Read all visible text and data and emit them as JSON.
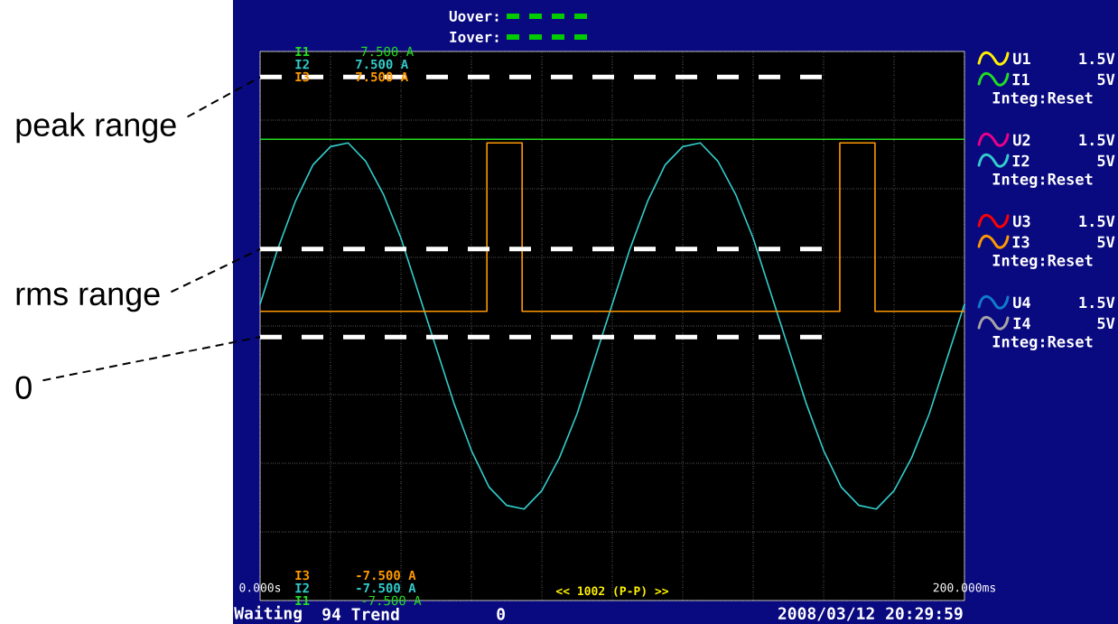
{
  "chart_data": {
    "type": "line",
    "x": [
      0,
      5,
      10,
      15,
      20,
      25,
      30,
      35,
      40,
      45,
      50,
      55,
      60,
      65,
      70,
      75,
      80,
      85,
      90,
      95,
      100,
      105,
      110,
      115,
      120,
      125,
      130,
      135,
      140,
      145,
      150,
      155,
      160,
      165,
      170,
      175,
      180,
      185,
      190,
      195,
      200
    ],
    "series": [
      {
        "name": "I1",
        "color": "#22dd22",
        "x": [
          0,
          200
        ],
        "values": [
          5.1,
          5.1
        ]
      },
      {
        "name": "I2",
        "color": "#33cccc",
        "values": [
          0.6,
          2.1,
          3.4,
          4.4,
          4.9,
          5.0,
          4.5,
          3.6,
          2.4,
          0.9,
          -0.6,
          -2.1,
          -3.4,
          -4.4,
          -4.9,
          -5.0,
          -4.5,
          -3.6,
          -2.4,
          -0.9,
          0.6,
          2.1,
          3.4,
          4.4,
          4.9,
          5.0,
          4.5,
          3.6,
          2.4,
          0.9,
          -0.6,
          -2.1,
          -3.4,
          -4.4,
          -4.9,
          -5.0,
          -4.5,
          -3.6,
          -2.4,
          -0.9,
          0.6
        ]
      },
      {
        "name": "I3",
        "color": "#ff9900",
        "x": [
          0,
          64.4,
          64.4,
          74.4,
          74.4,
          164.6,
          164.6,
          174.6,
          174.6,
          200
        ],
        "values": [
          0.4,
          0.4,
          5.0,
          5.0,
          0.4,
          0.4,
          5.0,
          5.0,
          0.4,
          0.4
        ]
      }
    ],
    "xlim": [
      0,
      200
    ],
    "xticks": [
      {
        "value": 0,
        "label": "0.000s"
      },
      {
        "value": 20,
        "label": null
      },
      {
        "value": 40,
        "label": null
      },
      {
        "value": 60,
        "label": null
      },
      {
        "value": 80,
        "label": null
      },
      {
        "value": 100,
        "label": null
      },
      {
        "value": 120,
        "label": null
      },
      {
        "value": 140,
        "label": null
      },
      {
        "value": 160,
        "label": null
      },
      {
        "value": 180,
        "label": null
      },
      {
        "value": 200,
        "label": "200.000ms"
      }
    ],
    "ylim": [
      -7.5,
      7.5
    ],
    "yticks": [
      {
        "value": -7.5,
        "label": "-7.500 A"
      },
      {
        "value": -5.625,
        "label": null
      },
      {
        "value": -3.75,
        "label": null
      },
      {
        "value": -1.875,
        "label": null
      },
      {
        "value": 0,
        "label": null
      },
      {
        "value": 1.875,
        "label": null
      },
      {
        "value": 3.75,
        "label": null
      },
      {
        "value": 5.625,
        "label": null
      },
      {
        "value": 7.5,
        "label": "7.500 A"
      }
    ],
    "grid": true,
    "legend": "right",
    "ref_lines": [
      {
        "axis": "y",
        "value": 6.8,
        "label": "peak range",
        "color": "#ffffff",
        "line_style": "dashed"
      },
      {
        "axis": "y",
        "value": 2.1,
        "label": "rms range",
        "color": "#ffffff",
        "line_style": "dashed"
      },
      {
        "axis": "y",
        "value": -0.3,
        "label": "0",
        "color": "#ffffff",
        "line_style": "dashed"
      }
    ],
    "annotations": [
      "Uover:",
      "Iover:",
      "I1",
      "I2",
      "7.500 A",
      "I3",
      "7.500 A",
      "I3",
      "-7.500 A",
      "I2",
      "-7.500 A",
      "I1",
      "<< 1002 (P-P) >>",
      "Waiting",
      "94 Trend",
      "0",
      "2008/03/12 20:29:59",
      "U1",
      "1.5V",
      "5V",
      "Integ:Reset",
      "U2",
      "1.5V",
      "5V",
      "Integ:Reset",
      "U3",
      "1.5V",
      "5V",
      "Integ:Reset",
      "U4",
      "1.5V",
      "I4",
      "5V",
      "Integ:Reset"
    ]
  }
}
